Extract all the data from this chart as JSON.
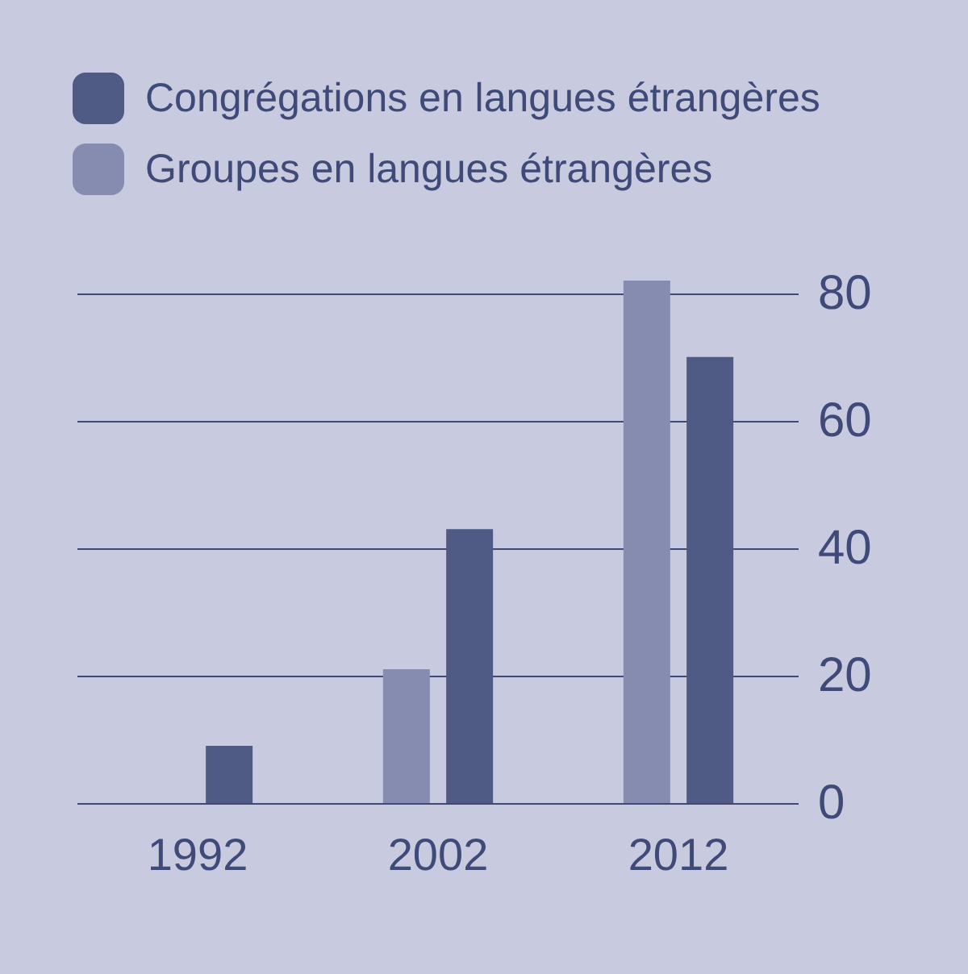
{
  "chart_data": {
    "type": "bar",
    "categories": [
      "1992",
      "2002",
      "2012"
    ],
    "series": [
      {
        "name": "Congrégations en langues étrangères",
        "color": "#4f5a85",
        "values": [
          9,
          43,
          70
        ]
      },
      {
        "name": "Groupes en langues étrangères",
        "color": "#858caf",
        "values": [
          null,
          21,
          82
        ]
      }
    ],
    "ylim": [
      0,
      82
    ],
    "yticks": [
      0,
      20,
      40,
      60,
      80
    ],
    "grid": "y",
    "legend": "top left"
  }
}
